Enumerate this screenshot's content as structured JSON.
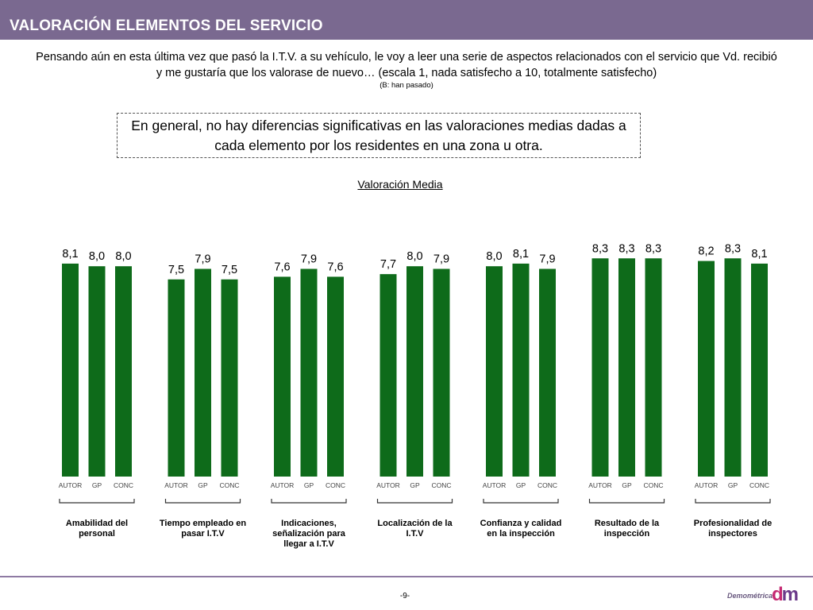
{
  "header": {
    "title": "VALORACIÓN ELEMENTOS DEL SERVICIO"
  },
  "intro": {
    "question": "Pensando aún en esta última vez que pasó la I.T.V. a su vehículo, le voy a leer una serie de aspectos relacionados con el servicio que Vd. recibió y me gustaría que los valorase de nuevo… (escala 1, nada satisfecho a 10, totalmente satisfecho)",
    "base": "(B: han pasado)"
  },
  "note": "En general, no hay diferencias significativas en las valoraciones medias dadas a cada elemento por los residentes en una zona u otra.",
  "footer": {
    "page_number": "-9-",
    "logo_text": "Demométrica",
    "logo_mark_d": "d",
    "logo_mark_m": "m"
  },
  "colors": {
    "bar": "#0e6b1a",
    "header": "#7a6990"
  },
  "chart_data": {
    "type": "bar",
    "title": "Valoración Media",
    "series_labels": [
      "AUTOR",
      "GP",
      "CONC"
    ],
    "groups": [
      {
        "label": "Amabilidad del personal",
        "values": [
          8.1,
          8.0,
          8.0
        ],
        "value_labels": [
          "8,1",
          "8,0",
          "8,0"
        ]
      },
      {
        "label": "Tiempo empleado en pasar I.T.V",
        "values": [
          7.5,
          7.9,
          7.5
        ],
        "value_labels": [
          "7,5",
          "7,9",
          "7,5"
        ]
      },
      {
        "label": "Indicaciones, señalización para llegar a I.T.V",
        "values": [
          7.6,
          7.9,
          7.6
        ],
        "value_labels": [
          "7,6",
          "7,9",
          "7,6"
        ]
      },
      {
        "label": "Localización de la I.T.V",
        "values": [
          7.7,
          8.0,
          7.9
        ],
        "value_labels": [
          "7,7",
          "8,0",
          "7,9"
        ]
      },
      {
        "label": "Confianza y calidad en la inspección",
        "values": [
          8.0,
          8.1,
          7.9
        ],
        "value_labels": [
          "8,0",
          "8,1",
          "7,9"
        ]
      },
      {
        "label": "Resultado de la inspección",
        "values": [
          8.3,
          8.3,
          8.3
        ],
        "value_labels": [
          "8,3",
          "8,3",
          "8,3"
        ]
      },
      {
        "label": "Profesionalidad de inspectores",
        "values": [
          8.2,
          8.3,
          8.1
        ],
        "value_labels": [
          "8,2",
          "8,3",
          "8,1"
        ]
      }
    ],
    "ylim": [
      0,
      10
    ],
    "grid": false,
    "legend": "none"
  }
}
